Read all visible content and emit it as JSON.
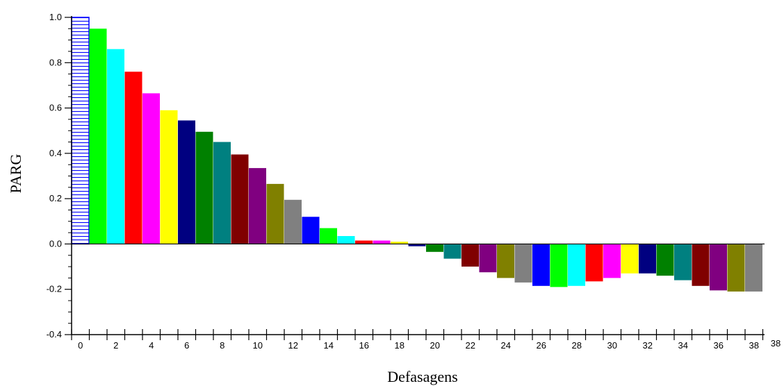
{
  "chart_data": {
    "type": "bar",
    "xlabel": "Defasagens",
    "ylabel": "PARG",
    "ylim": [
      -0.4,
      1.0
    ],
    "xlim": [
      0,
      38
    ],
    "grid": false,
    "legend": "none",
    "y_ticks": [
      "-0.4",
      "-0.2",
      "0.0",
      "0.2",
      "0.4",
      "0.6",
      "0.8",
      "1.0"
    ],
    "x_ticks": [
      "0",
      "2",
      "4",
      "6",
      "8",
      "10",
      "12",
      "14",
      "16",
      "18",
      "20",
      "22",
      "24",
      "26",
      "28",
      "30",
      "32",
      "34",
      "36",
      "38"
    ],
    "x_end_label": "38",
    "lags": [
      0,
      1,
      2,
      3,
      4,
      5,
      6,
      7,
      8,
      9,
      10,
      11,
      12,
      13,
      14,
      15,
      16,
      17,
      18,
      19,
      20,
      21,
      22,
      23,
      24,
      25,
      26,
      27,
      28,
      29,
      30,
      31,
      32,
      33,
      34,
      35,
      36,
      37,
      38
    ],
    "values": [
      1.0,
      0.95,
      0.86,
      0.76,
      0.665,
      0.59,
      0.545,
      0.495,
      0.45,
      0.395,
      0.335,
      0.265,
      0.195,
      0.12,
      0.07,
      0.035,
      0.015,
      0.015,
      0.01,
      -0.01,
      -0.035,
      -0.065,
      -0.1,
      -0.125,
      -0.15,
      -0.17,
      -0.185,
      -0.19,
      -0.185,
      -0.165,
      -0.15,
      -0.13,
      -0.13,
      -0.14,
      -0.16,
      -0.185,
      -0.205,
      -0.21,
      -0.21
    ],
    "first_bar_style": "hatched",
    "first_bar_color": "#0000ff",
    "colors": [
      "#00ff00",
      "#00ffff",
      "#ff0000",
      "#ff00ff",
      "#ffff00",
      "#000080",
      "#008000",
      "#008080",
      "#800000",
      "#800080",
      "#808000",
      "#808080",
      "#0000ff"
    ]
  }
}
